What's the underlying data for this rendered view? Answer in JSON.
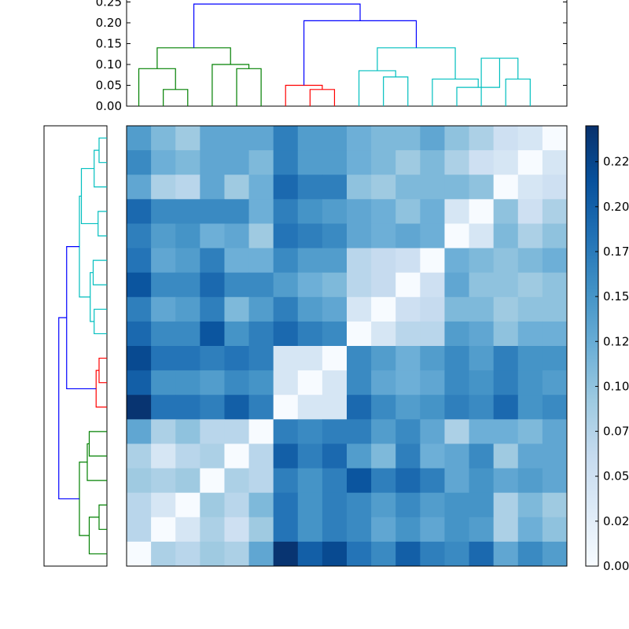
{
  "chart_data": {
    "type": "heatmap",
    "title": "",
    "xlabel": "",
    "ylabel": "",
    "n": 18,
    "colormap": "Blues",
    "colors": {
      "min": "#f7fbff",
      "max": "#08306b"
    },
    "matrix": [
      [
        0.141,
        0.111,
        0.091,
        0.131,
        0.131,
        0.131,
        0.171,
        0.141,
        0.141,
        0.121,
        0.111,
        0.111,
        0.131,
        0.101,
        0.081,
        0.051,
        0.041,
        0.0
      ],
      [
        0.161,
        0.121,
        0.111,
        0.131,
        0.131,
        0.111,
        0.171,
        0.141,
        0.141,
        0.121,
        0.111,
        0.091,
        0.111,
        0.081,
        0.051,
        0.041,
        0.0,
        0.041
      ],
      [
        0.131,
        0.081,
        0.071,
        0.131,
        0.091,
        0.121,
        0.191,
        0.171,
        0.171,
        0.101,
        0.091,
        0.111,
        0.111,
        0.111,
        0.101,
        0.0,
        0.041,
        0.051
      ],
      [
        0.191,
        0.161,
        0.161,
        0.161,
        0.161,
        0.121,
        0.171,
        0.151,
        0.141,
        0.131,
        0.121,
        0.101,
        0.121,
        0.041,
        0.0,
        0.101,
        0.051,
        0.081
      ],
      [
        0.171,
        0.141,
        0.151,
        0.121,
        0.131,
        0.091,
        0.181,
        0.171,
        0.161,
        0.131,
        0.121,
        0.131,
        0.121,
        0.0,
        0.041,
        0.111,
        0.081,
        0.101
      ],
      [
        0.181,
        0.131,
        0.141,
        0.171,
        0.121,
        0.121,
        0.161,
        0.141,
        0.141,
        0.071,
        0.061,
        0.051,
        0.0,
        0.121,
        0.111,
        0.101,
        0.111,
        0.121
      ],
      [
        0.211,
        0.161,
        0.161,
        0.191,
        0.161,
        0.161,
        0.141,
        0.121,
        0.111,
        0.071,
        0.061,
        0.0,
        0.051,
        0.131,
        0.101,
        0.101,
        0.091,
        0.101
      ],
      [
        0.171,
        0.131,
        0.141,
        0.171,
        0.111,
        0.141,
        0.171,
        0.141,
        0.131,
        0.041,
        0.0,
        0.051,
        0.061,
        0.111,
        0.111,
        0.091,
        0.101,
        0.101
      ],
      [
        0.191,
        0.161,
        0.161,
        0.211,
        0.151,
        0.171,
        0.191,
        0.171,
        0.161,
        0.0,
        0.041,
        0.071,
        0.071,
        0.141,
        0.131,
        0.101,
        0.121,
        0.121
      ],
      [
        0.221,
        0.181,
        0.181,
        0.171,
        0.181,
        0.171,
        0.041,
        0.041,
        0.0,
        0.161,
        0.141,
        0.121,
        0.141,
        0.161,
        0.141,
        0.171,
        0.151,
        0.151
      ],
      [
        0.201,
        0.151,
        0.151,
        0.141,
        0.161,
        0.151,
        0.041,
        0.0,
        0.041,
        0.161,
        0.131,
        0.121,
        0.131,
        0.161,
        0.151,
        0.171,
        0.151,
        0.141
      ],
      [
        0.241,
        0.181,
        0.181,
        0.171,
        0.201,
        0.171,
        0.0,
        0.041,
        0.041,
        0.191,
        0.161,
        0.141,
        0.151,
        0.171,
        0.161,
        0.191,
        0.151,
        0.161
      ],
      [
        0.131,
        0.081,
        0.101,
        0.071,
        0.071,
        0.0,
        0.171,
        0.161,
        0.171,
        0.171,
        0.141,
        0.161,
        0.131,
        0.081,
        0.121,
        0.121,
        0.111,
        0.131
      ],
      [
        0.081,
        0.041,
        0.071,
        0.081,
        0.0,
        0.071,
        0.201,
        0.171,
        0.191,
        0.141,
        0.111,
        0.171,
        0.121,
        0.131,
        0.161,
        0.091,
        0.131,
        0.131
      ],
      [
        0.091,
        0.081,
        0.091,
        0.0,
        0.081,
        0.071,
        0.171,
        0.151,
        0.171,
        0.211,
        0.171,
        0.191,
        0.171,
        0.131,
        0.151,
        0.131,
        0.141,
        0.131
      ],
      [
        0.071,
        0.041,
        0.0,
        0.091,
        0.071,
        0.111,
        0.181,
        0.151,
        0.171,
        0.161,
        0.141,
        0.161,
        0.141,
        0.151,
        0.151,
        0.081,
        0.111,
        0.091
      ],
      [
        0.071,
        0.0,
        0.041,
        0.081,
        0.051,
        0.091,
        0.181,
        0.151,
        0.171,
        0.161,
        0.131,
        0.151,
        0.131,
        0.151,
        0.141,
        0.081,
        0.121,
        0.101
      ],
      [
        0.0,
        0.081,
        0.071,
        0.091,
        0.081,
        0.131,
        0.241,
        0.201,
        0.221,
        0.181,
        0.161,
        0.201,
        0.171,
        0.161,
        0.191,
        0.131,
        0.161,
        0.141
      ]
    ],
    "colorbar": {
      "vmin": 0.0,
      "vmax": 0.245,
      "ticks": [
        0.0,
        0.025,
        0.05,
        0.075,
        0.1,
        0.125,
        0.15,
        0.175,
        0.2,
        0.225
      ],
      "tick_labels": [
        "0.00",
        "0.02",
        "0.05",
        "0.07",
        "0.10",
        "0.12",
        "0.15",
        "0.17",
        "0.20",
        "0.22"
      ]
    },
    "top_dendrogram": {
      "ylim": [
        0,
        0.25
      ],
      "yticks": [
        0.0,
        0.05,
        0.1,
        0.15,
        0.2,
        0.25
      ],
      "ytick_labels": [
        "0.00",
        "0.05",
        "0.10",
        "0.15",
        "0.20",
        "0.25"
      ],
      "colors": {
        "green": "#008000",
        "red": "#ff0000",
        "cyan": "#00bfbf",
        "blue": "#0000ff"
      },
      "merges": [
        {
          "l": 1,
          "r": 2,
          "h": 0.04,
          "c": "green"
        },
        {
          "l": 0,
          "r": 1.5,
          "h": 0.09,
          "c": "green"
        },
        {
          "l": 4,
          "r": 5,
          "h": 0.09,
          "c": "green"
        },
        {
          "l": 3,
          "r": 4.5,
          "h": 0.1,
          "c": "green"
        },
        {
          "l": 0.75,
          "r": 3.75,
          "h": 0.14,
          "c": "green"
        },
        {
          "l": 7,
          "r": 8,
          "h": 0.04,
          "c": "red"
        },
        {
          "l": 6,
          "r": 7.5,
          "h": 0.05,
          "c": "red"
        },
        {
          "l": 10,
          "r": 11,
          "h": 0.07,
          "c": "cyan"
        },
        {
          "l": 9,
          "r": 10.5,
          "h": 0.085,
          "c": "cyan"
        },
        {
          "l": 15,
          "r": 16,
          "h": 0.065,
          "c": "cyan"
        },
        {
          "l": 14,
          "r": 15.5,
          "h": 0.115,
          "c": "cyan"
        },
        {
          "l": 13,
          "r": 14.75,
          "h": 0.045,
          "c": "cyan"
        },
        {
          "l": 12,
          "r": 13.875,
          "h": 0.065,
          "c": "cyan"
        },
        {
          "l": 9.75,
          "r": 12.9375,
          "h": 0.14,
          "c": "cyan"
        },
        {
          "l": 6.75,
          "r": 11.34375,
          "h": 0.205,
          "c": "blue"
        },
        {
          "l": 2.25,
          "r": 9.046875,
          "h": 0.245,
          "c": "blue"
        }
      ]
    },
    "left_dendrogram": {
      "merges": [
        {
          "l": 0,
          "r": 1,
          "h": 0.04,
          "c": "cyan"
        },
        {
          "l": 0.5,
          "r": 2,
          "h": 0.065,
          "c": "cyan"
        },
        {
          "l": 3,
          "r": 4,
          "h": 0.045,
          "c": "cyan"
        },
        {
          "l": 1.25,
          "r": 3.5,
          "h": 0.13,
          "c": "cyan"
        },
        {
          "l": 5,
          "r": 6,
          "h": 0.07,
          "c": "cyan"
        },
        {
          "l": 7,
          "r": 8,
          "h": 0.065,
          "c": "cyan"
        },
        {
          "l": 5.5,
          "r": 7.5,
          "h": 0.085,
          "c": "cyan"
        },
        {
          "l": 2.375,
          "r": 6.5,
          "h": 0.14,
          "c": "cyan"
        },
        {
          "l": 9,
          "r": 10,
          "h": 0.04,
          "c": "red"
        },
        {
          "l": 9.5,
          "r": 11,
          "h": 0.055,
          "c": "red"
        },
        {
          "l": 4.4375,
          "r": 10.25,
          "h": 0.205,
          "c": "blue"
        },
        {
          "l": 12,
          "r": 13,
          "h": 0.09,
          "c": "green"
        },
        {
          "l": 12.5,
          "r": 14,
          "h": 0.1,
          "c": "green"
        },
        {
          "l": 15,
          "r": 16,
          "h": 0.04,
          "c": "green"
        },
        {
          "l": 15.5,
          "r": 17,
          "h": 0.09,
          "c": "green"
        },
        {
          "l": 13.25,
          "r": 16.25,
          "h": 0.14,
          "c": "green"
        },
        {
          "l": 7.34375,
          "r": 14.75,
          "h": 0.245,
          "c": "blue"
        }
      ]
    }
  }
}
